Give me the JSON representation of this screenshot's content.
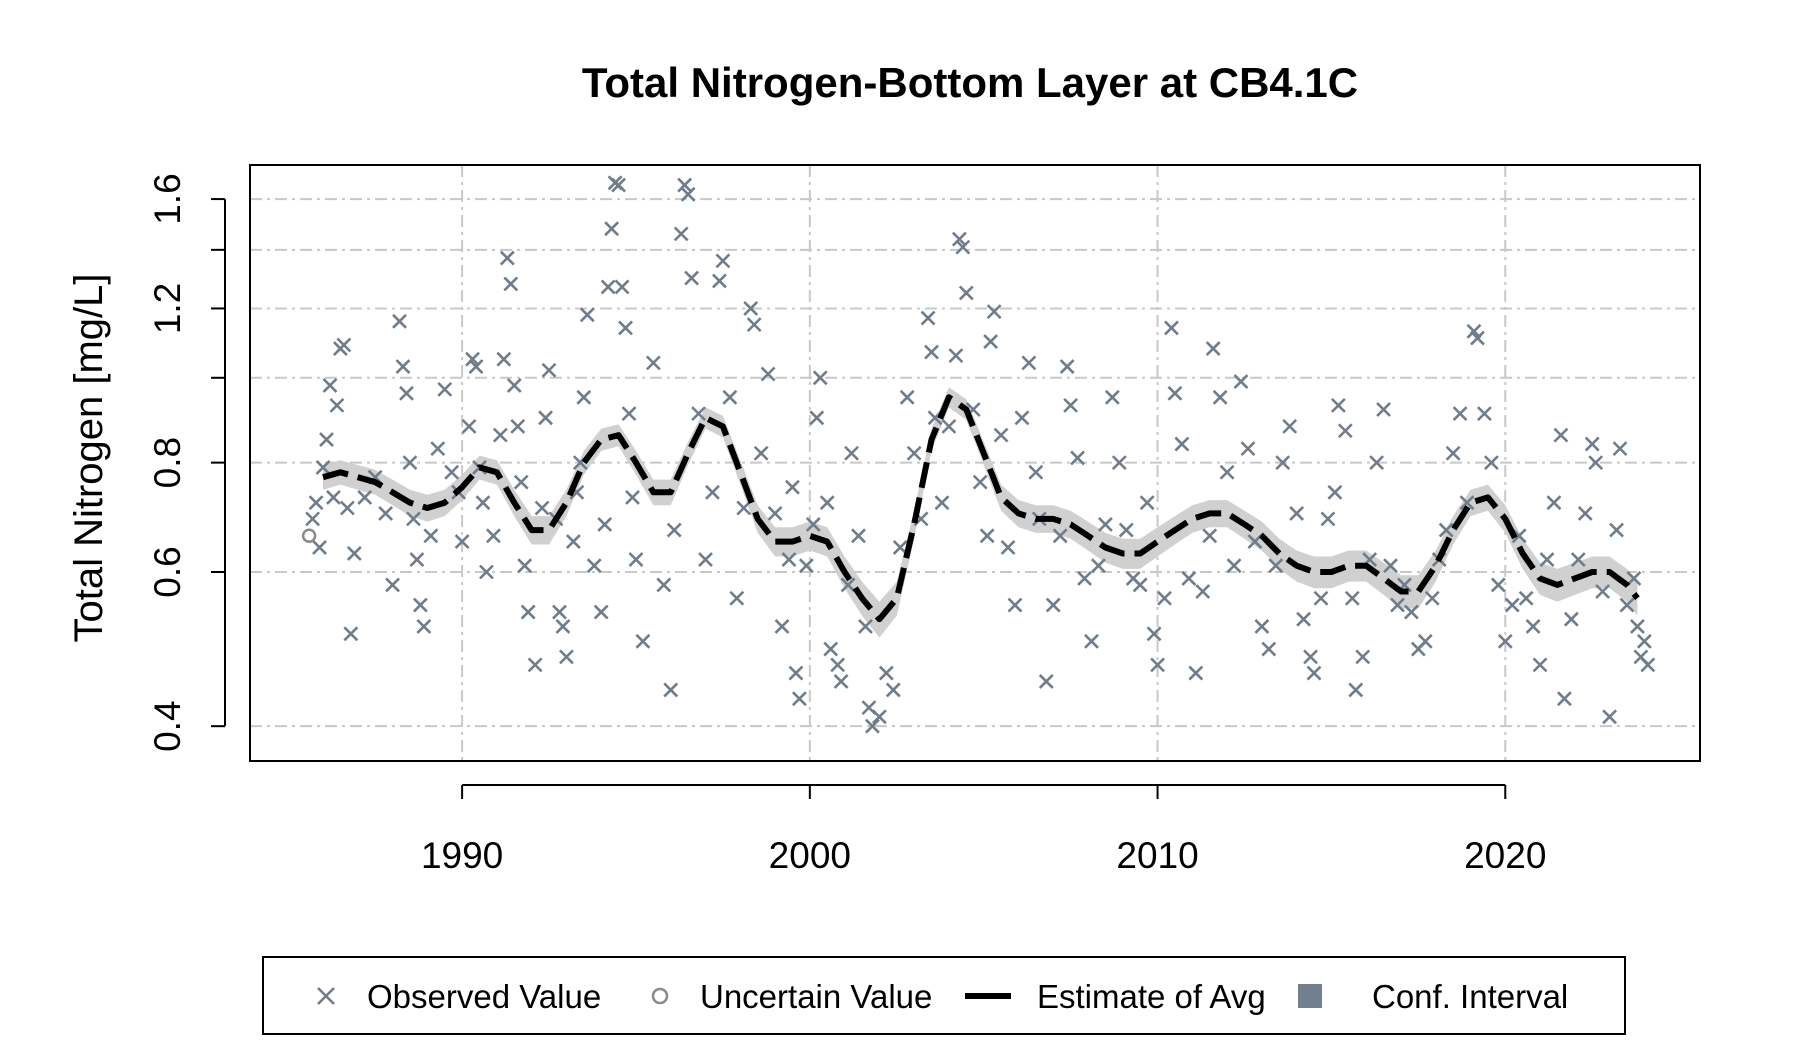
{
  "chart_data": {
    "type": "scatter",
    "title": "Total Nitrogen-Bottom Layer at CB4.1C",
    "xlabel": "",
    "ylabel": "Total Nitrogen [mg/L]",
    "y_scale": "log",
    "xlim": [
      1983.9,
      2025.6
    ],
    "ylim": [
      0.365,
      1.75
    ],
    "x_ticks": [
      1990,
      2000,
      2010,
      2020
    ],
    "x_tick_labels": [
      "1990",
      "2000",
      "2010",
      "2020"
    ],
    "y_ticks": [
      0.4,
      0.6,
      0.8,
      1.2,
      1.6
    ],
    "y_tick_labels": [
      "0.4",
      "0.6",
      "0.8",
      "1.2",
      "1.6"
    ],
    "y_minor_ticks": [
      0.4,
      0.6,
      0.8,
      1.0,
      1.2,
      1.4,
      1.6
    ],
    "grid": true,
    "legend": {
      "position": "bottom",
      "entries": [
        {
          "label": "Observed Value",
          "symbol": "x",
          "color": "#6f7c8b"
        },
        {
          "label": "Uncertain Value",
          "symbol": "circle",
          "color": "#8a8a8a"
        },
        {
          "label": "Estimate of Avg",
          "symbol": "dashed-line",
          "color": "#000000"
        },
        {
          "label": "Conf. Interval",
          "symbol": "filled-square",
          "color": "#708090"
        }
      ]
    },
    "colors": {
      "observed": "#6f7c8b",
      "uncertain": "#8a8a8a",
      "estimate": "#000000",
      "ci": "#d0d0d0"
    },
    "estimate": {
      "x": [
        1986.0,
        1986.5,
        1987.0,
        1987.5,
        1988.0,
        1988.5,
        1989.0,
        1989.5,
        1990.0,
        1990.5,
        1991.0,
        1991.5,
        1992.0,
        1992.5,
        1993.0,
        1993.5,
        1994.0,
        1994.5,
        1995.0,
        1995.5,
        1996.0,
        1996.5,
        1997.0,
        1997.5,
        1998.0,
        1998.5,
        1999.0,
        1999.5,
        2000.0,
        2000.5,
        2001.0,
        2001.5,
        2002.0,
        2002.5,
        2003.0,
        2003.5,
        2004.0,
        2004.5,
        2005.0,
        2005.5,
        2006.0,
        2006.5,
        2007.0,
        2007.5,
        2008.0,
        2008.5,
        2009.0,
        2009.5,
        2010.0,
        2010.5,
        2011.0,
        2011.5,
        2012.0,
        2012.5,
        2013.0,
        2013.5,
        2014.0,
        2014.5,
        2015.0,
        2015.5,
        2016.0,
        2016.5,
        2017.0,
        2017.5,
        2018.0,
        2018.5,
        2019.0,
        2019.5,
        2020.0,
        2020.5,
        2021.0,
        2021.5,
        2022.0,
        2022.5,
        2023.0,
        2023.5,
        2023.8
      ],
      "y": [
        0.77,
        0.78,
        0.77,
        0.76,
        0.74,
        0.72,
        0.71,
        0.72,
        0.75,
        0.79,
        0.78,
        0.72,
        0.67,
        0.67,
        0.72,
        0.8,
        0.85,
        0.86,
        0.8,
        0.74,
        0.74,
        0.82,
        0.9,
        0.88,
        0.78,
        0.69,
        0.65,
        0.65,
        0.66,
        0.65,
        0.6,
        0.56,
        0.53,
        0.56,
        0.68,
        0.85,
        0.95,
        0.92,
        0.82,
        0.73,
        0.7,
        0.69,
        0.69,
        0.68,
        0.66,
        0.64,
        0.63,
        0.63,
        0.65,
        0.67,
        0.69,
        0.7,
        0.7,
        0.68,
        0.66,
        0.63,
        0.61,
        0.6,
        0.6,
        0.61,
        0.61,
        0.59,
        0.57,
        0.57,
        0.61,
        0.67,
        0.72,
        0.73,
        0.69,
        0.63,
        0.59,
        0.58,
        0.59,
        0.6,
        0.6,
        0.58,
        0.56
      ],
      "ci_lower": [
        0.745,
        0.755,
        0.745,
        0.735,
        0.715,
        0.695,
        0.685,
        0.695,
        0.725,
        0.765,
        0.755,
        0.695,
        0.645,
        0.645,
        0.695,
        0.775,
        0.825,
        0.835,
        0.775,
        0.715,
        0.715,
        0.795,
        0.875,
        0.855,
        0.755,
        0.665,
        0.625,
        0.625,
        0.635,
        0.625,
        0.575,
        0.535,
        0.505,
        0.535,
        0.655,
        0.825,
        0.925,
        0.895,
        0.795,
        0.705,
        0.675,
        0.665,
        0.665,
        0.655,
        0.635,
        0.615,
        0.605,
        0.605,
        0.625,
        0.645,
        0.665,
        0.675,
        0.675,
        0.655,
        0.635,
        0.605,
        0.585,
        0.575,
        0.575,
        0.585,
        0.585,
        0.565,
        0.545,
        0.545,
        0.585,
        0.645,
        0.695,
        0.705,
        0.665,
        0.605,
        0.565,
        0.555,
        0.565,
        0.575,
        0.575,
        0.555,
        0.535
      ],
      "ci_upper": [
        0.795,
        0.805,
        0.795,
        0.785,
        0.765,
        0.745,
        0.735,
        0.745,
        0.775,
        0.815,
        0.805,
        0.745,
        0.695,
        0.695,
        0.745,
        0.825,
        0.875,
        0.885,
        0.825,
        0.765,
        0.765,
        0.845,
        0.925,
        0.905,
        0.805,
        0.715,
        0.675,
        0.675,
        0.685,
        0.675,
        0.625,
        0.585,
        0.555,
        0.585,
        0.705,
        0.875,
        0.975,
        0.945,
        0.845,
        0.755,
        0.725,
        0.715,
        0.715,
        0.705,
        0.685,
        0.665,
        0.655,
        0.655,
        0.675,
        0.695,
        0.715,
        0.725,
        0.725,
        0.705,
        0.685,
        0.655,
        0.635,
        0.625,
        0.625,
        0.635,
        0.635,
        0.615,
        0.595,
        0.595,
        0.635,
        0.695,
        0.745,
        0.755,
        0.715,
        0.655,
        0.615,
        0.605,
        0.615,
        0.625,
        0.625,
        0.605,
        0.585
      ]
    },
    "uncertain_points": [
      {
        "x": 1985.6,
        "y": 0.66
      }
    ],
    "observed_points": [
      [
        1985.7,
        0.69
      ],
      [
        1985.8,
        0.72
      ],
      [
        1985.9,
        0.64
      ],
      [
        1986.0,
        0.79
      ],
      [
        1986.1,
        0.85
      ],
      [
        1986.2,
        0.98
      ],
      [
        1986.3,
        0.73
      ],
      [
        1986.4,
        0.93
      ],
      [
        1986.5,
        1.08
      ],
      [
        1986.6,
        1.09
      ],
      [
        1986.7,
        0.71
      ],
      [
        1986.8,
        0.51
      ],
      [
        1986.9,
        0.63
      ],
      [
        1987.2,
        0.73
      ],
      [
        1987.5,
        0.77
      ],
      [
        1987.8,
        0.7
      ],
      [
        1988.0,
        0.58
      ],
      [
        1988.2,
        1.16
      ],
      [
        1988.3,
        1.03
      ],
      [
        1988.4,
        0.96
      ],
      [
        1988.5,
        0.8
      ],
      [
        1988.6,
        0.69
      ],
      [
        1988.7,
        0.62
      ],
      [
        1988.8,
        0.55
      ],
      [
        1988.9,
        0.52
      ],
      [
        1989.1,
        0.66
      ],
      [
        1989.3,
        0.83
      ],
      [
        1989.5,
        0.97
      ],
      [
        1989.7,
        0.78
      ],
      [
        1989.9,
        0.74
      ],
      [
        1990.0,
        0.65
      ],
      [
        1990.2,
        0.88
      ],
      [
        1990.3,
        1.05
      ],
      [
        1990.4,
        1.03
      ],
      [
        1990.5,
        0.79
      ],
      [
        1990.6,
        0.72
      ],
      [
        1990.7,
        0.6
      ],
      [
        1990.9,
        0.66
      ],
      [
        1991.1,
        0.86
      ],
      [
        1991.2,
        1.05
      ],
      [
        1991.3,
        1.37
      ],
      [
        1991.4,
        1.28
      ],
      [
        1991.5,
        0.98
      ],
      [
        1991.6,
        0.88
      ],
      [
        1991.7,
        0.76
      ],
      [
        1991.8,
        0.61
      ],
      [
        1991.9,
        0.54
      ],
      [
        1992.1,
        0.47
      ],
      [
        1992.3,
        0.71
      ],
      [
        1992.4,
        0.9
      ],
      [
        1992.5,
        1.02
      ],
      [
        1992.7,
        0.69
      ],
      [
        1992.8,
        0.54
      ],
      [
        1992.9,
        0.52
      ],
      [
        1993.0,
        0.48
      ],
      [
        1993.2,
        0.65
      ],
      [
        1993.3,
        0.74
      ],
      [
        1993.4,
        0.8
      ],
      [
        1993.5,
        0.95
      ],
      [
        1993.6,
        1.18
      ],
      [
        1993.8,
        0.61
      ],
      [
        1994.0,
        0.54
      ],
      [
        1994.1,
        0.68
      ],
      [
        1994.2,
        1.27
      ],
      [
        1994.3,
        1.48
      ],
      [
        1994.4,
        1.67
      ],
      [
        1994.5,
        1.66
      ],
      [
        1994.6,
        1.27
      ],
      [
        1994.7,
        1.14
      ],
      [
        1994.8,
        0.91
      ],
      [
        1994.9,
        0.73
      ],
      [
        1995.0,
        0.62
      ],
      [
        1995.2,
        0.5
      ],
      [
        1995.5,
        1.04
      ],
      [
        1995.8,
        0.58
      ],
      [
        1996.0,
        0.44
      ],
      [
        1996.1,
        0.67
      ],
      [
        1996.3,
        1.46
      ],
      [
        1996.4,
        1.66
      ],
      [
        1996.5,
        1.62
      ],
      [
        1996.6,
        1.3
      ],
      [
        1996.8,
        0.91
      ],
      [
        1997.0,
        0.62
      ],
      [
        1997.2,
        0.74
      ],
      [
        1997.4,
        1.29
      ],
      [
        1997.5,
        1.36
      ],
      [
        1997.7,
        0.95
      ],
      [
        1997.9,
        0.56
      ],
      [
        1998.1,
        0.71
      ],
      [
        1998.3,
        1.2
      ],
      [
        1998.4,
        1.15
      ],
      [
        1998.6,
        0.82
      ],
      [
        1998.8,
        1.01
      ],
      [
        1999.0,
        0.7
      ],
      [
        1999.2,
        0.52
      ],
      [
        1999.4,
        0.62
      ],
      [
        1999.5,
        0.75
      ],
      [
        1999.6,
        0.46
      ],
      [
        1999.7,
        0.43
      ],
      [
        1999.9,
        0.61
      ],
      [
        2000.1,
        0.68
      ],
      [
        2000.2,
        0.9
      ],
      [
        2000.3,
        1.0
      ],
      [
        2000.5,
        0.72
      ],
      [
        2000.6,
        0.49
      ],
      [
        2000.8,
        0.47
      ],
      [
        2000.9,
        0.45
      ],
      [
        2001.1,
        0.58
      ],
      [
        2001.2,
        0.82
      ],
      [
        2001.4,
        0.66
      ],
      [
        2001.6,
        0.52
      ],
      [
        2001.7,
        0.42
      ],
      [
        2001.8,
        0.4
      ],
      [
        2002.0,
        0.41
      ],
      [
        2002.2,
        0.46
      ],
      [
        2002.4,
        0.44
      ],
      [
        2002.6,
        0.64
      ],
      [
        2002.8,
        0.95
      ],
      [
        2003.0,
        0.82
      ],
      [
        2003.2,
        0.69
      ],
      [
        2003.4,
        1.17
      ],
      [
        2003.5,
        1.07
      ],
      [
        2003.6,
        0.9
      ],
      [
        2003.8,
        0.72
      ],
      [
        2004.0,
        0.88
      ],
      [
        2004.2,
        1.06
      ],
      [
        2004.3,
        1.44
      ],
      [
        2004.4,
        1.41
      ],
      [
        2004.5,
        1.25
      ],
      [
        2004.7,
        0.92
      ],
      [
        2004.9,
        0.76
      ],
      [
        2005.1,
        0.66
      ],
      [
        2005.2,
        1.1
      ],
      [
        2005.3,
        1.19
      ],
      [
        2005.5,
        0.86
      ],
      [
        2005.7,
        0.64
      ],
      [
        2005.9,
        0.55
      ],
      [
        2006.1,
        0.9
      ],
      [
        2006.3,
        1.04
      ],
      [
        2006.5,
        0.78
      ],
      [
        2006.6,
        0.69
      ],
      [
        2006.8,
        0.45
      ],
      [
        2007.0,
        0.55
      ],
      [
        2007.2,
        0.66
      ],
      [
        2007.4,
        1.03
      ],
      [
        2007.5,
        0.93
      ],
      [
        2007.7,
        0.81
      ],
      [
        2007.9,
        0.59
      ],
      [
        2008.1,
        0.5
      ],
      [
        2008.3,
        0.61
      ],
      [
        2008.5,
        0.68
      ],
      [
        2008.7,
        0.95
      ],
      [
        2008.9,
        0.8
      ],
      [
        2009.1,
        0.67
      ],
      [
        2009.3,
        0.59
      ],
      [
        2009.5,
        0.58
      ],
      [
        2009.7,
        0.72
      ],
      [
        2009.9,
        0.51
      ],
      [
        2010.0,
        0.47
      ],
      [
        2010.2,
        0.56
      ],
      [
        2010.4,
        1.14
      ],
      [
        2010.5,
        0.96
      ],
      [
        2010.7,
        0.84
      ],
      [
        2010.9,
        0.59
      ],
      [
        2011.1,
        0.46
      ],
      [
        2011.3,
        0.57
      ],
      [
        2011.5,
        0.66
      ],
      [
        2011.6,
        1.08
      ],
      [
        2011.8,
        0.95
      ],
      [
        2012.0,
        0.78
      ],
      [
        2012.2,
        0.61
      ],
      [
        2012.4,
        0.99
      ],
      [
        2012.6,
        0.83
      ],
      [
        2012.8,
        0.65
      ],
      [
        2013.0,
        0.52
      ],
      [
        2013.2,
        0.49
      ],
      [
        2013.4,
        0.61
      ],
      [
        2013.6,
        0.8
      ],
      [
        2013.8,
        0.88
      ],
      [
        2014.0,
        0.7
      ],
      [
        2014.2,
        0.53
      ],
      [
        2014.4,
        0.48
      ],
      [
        2014.5,
        0.46
      ],
      [
        2014.7,
        0.56
      ],
      [
        2014.9,
        0.69
      ],
      [
        2015.1,
        0.74
      ],
      [
        2015.2,
        0.93
      ],
      [
        2015.4,
        0.87
      ],
      [
        2015.6,
        0.56
      ],
      [
        2015.7,
        0.44
      ],
      [
        2015.9,
        0.48
      ],
      [
        2016.1,
        0.62
      ],
      [
        2016.3,
        0.8
      ],
      [
        2016.5,
        0.92
      ],
      [
        2016.7,
        0.61
      ],
      [
        2016.9,
        0.55
      ],
      [
        2017.1,
        0.58
      ],
      [
        2017.3,
        0.54
      ],
      [
        2017.5,
        0.49
      ],
      [
        2017.7,
        0.5
      ],
      [
        2017.9,
        0.56
      ],
      [
        2018.1,
        0.62
      ],
      [
        2018.3,
        0.67
      ],
      [
        2018.5,
        0.82
      ],
      [
        2018.7,
        0.91
      ],
      [
        2018.9,
        0.72
      ],
      [
        2019.1,
        1.13
      ],
      [
        2019.2,
        1.11
      ],
      [
        2019.4,
        0.91
      ],
      [
        2019.6,
        0.8
      ],
      [
        2019.8,
        0.58
      ],
      [
        2020.0,
        0.5
      ],
      [
        2020.2,
        0.55
      ],
      [
        2020.4,
        0.66
      ],
      [
        2020.6,
        0.56
      ],
      [
        2020.8,
        0.52
      ],
      [
        2021.0,
        0.47
      ],
      [
        2021.2,
        0.62
      ],
      [
        2021.4,
        0.72
      ],
      [
        2021.6,
        0.86
      ],
      [
        2021.7,
        0.43
      ],
      [
        2021.9,
        0.53
      ],
      [
        2022.1,
        0.62
      ],
      [
        2022.3,
        0.7
      ],
      [
        2022.5,
        0.84
      ],
      [
        2022.6,
        0.8
      ],
      [
        2022.8,
        0.57
      ],
      [
        2023.0,
        0.41
      ],
      [
        2023.2,
        0.67
      ],
      [
        2023.3,
        0.83
      ],
      [
        2023.5,
        0.55
      ],
      [
        2023.7,
        0.59
      ],
      [
        2023.8,
        0.52
      ],
      [
        2023.9,
        0.48
      ],
      [
        2024.0,
        0.5
      ],
      [
        2024.1,
        0.47
      ]
    ]
  }
}
